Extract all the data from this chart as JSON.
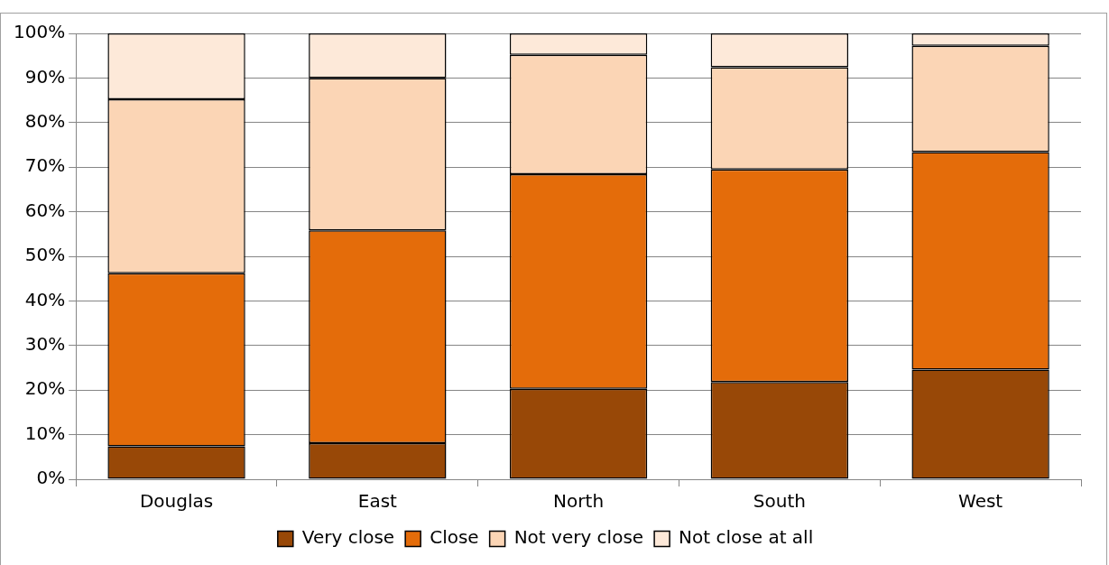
{
  "chart_data": {
    "type": "bar",
    "stacked": true,
    "categories": [
      "Douglas",
      "East",
      "North",
      "South",
      "West"
    ],
    "series": [
      {
        "name": "Very close",
        "color": "#984807",
        "values": [
          7.4,
          8.1,
          20.3,
          21.8,
          24.6
        ]
      },
      {
        "name": "Close",
        "color": "#e46c0a",
        "values": [
          38.8,
          47.7,
          48.1,
          47.7,
          48.8
        ]
      },
      {
        "name": "Not very close",
        "color": "#fbd5b5",
        "values": [
          39.0,
          34.2,
          26.8,
          22.9,
          23.8
        ]
      },
      {
        "name": "Not close at all",
        "color": "#fde9d9",
        "values": [
          14.8,
          10.0,
          4.8,
          7.6,
          2.8
        ]
      }
    ],
    "ylim": [
      0,
      100
    ],
    "yticks": [
      {
        "value": 0,
        "label": "0%"
      },
      {
        "value": 10,
        "label": "10%"
      },
      {
        "value": 20,
        "label": "20%"
      },
      {
        "value": 30,
        "label": "30%"
      },
      {
        "value": 40,
        "label": "40%"
      },
      {
        "value": 50,
        "label": "50%"
      },
      {
        "value": 60,
        "label": "60%"
      },
      {
        "value": 70,
        "label": "70%"
      },
      {
        "value": 80,
        "label": "80%"
      },
      {
        "value": 90,
        "label": "90%"
      },
      {
        "value": 100,
        "label": "100%"
      }
    ],
    "grid": "y",
    "legend": "bottom"
  }
}
